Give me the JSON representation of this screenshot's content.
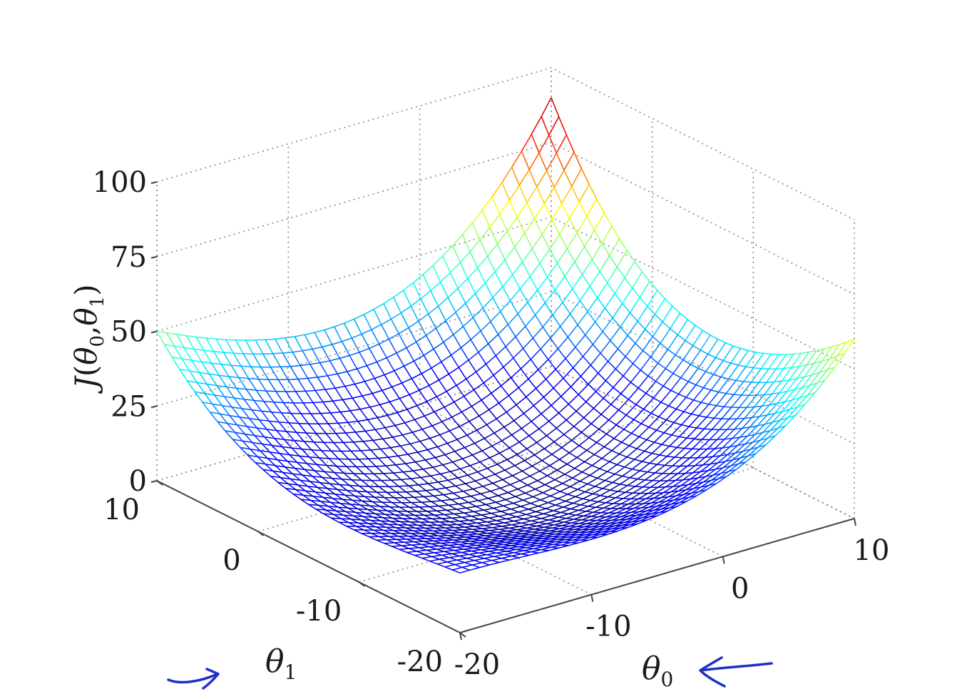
{
  "chart_data": {
    "type": "surface",
    "function": "J(θ0,θ1) bowl-shaped quadratic cost surface (mesh)",
    "theta0_range": [
      -20,
      10
    ],
    "theta1_range": [
      -20,
      10
    ],
    "z_range": [
      0,
      100
    ],
    "z_ticks": [
      "0",
      "25",
      "50",
      "75",
      "100"
    ],
    "theta0_ticks": [
      "-20",
      "-10",
      "0",
      "10"
    ],
    "theta1_ticks": [
      "-20",
      "-10",
      "0",
      "10"
    ],
    "corner_values": {
      "theta0_-20_theta1_10": 50,
      "theta0_10_theta1_10": 90,
      "theta0_10_theta1_-20": 60,
      "theta0_-20_theta1_-20": 20,
      "minimum": 0
    },
    "zlabel": "J(θ0,θ1)",
    "xlabel": "θ0",
    "ylabel": "θ1",
    "colormap": [
      "#00008f",
      "#0000ff",
      "#00ffff",
      "#ffff00",
      "#ff0000",
      "#800000"
    ],
    "grid": true
  },
  "labels": {
    "zlabel_main": "J",
    "zlabel_open": "(",
    "zlabel_t0": "θ",
    "zlabel_sub0": "0",
    "zlabel_comma": ",",
    "zlabel_t1": "θ",
    "zlabel_sub1": "1",
    "zlabel_close": ")",
    "x_theta": "θ",
    "x_sub": "0",
    "y_theta": "θ",
    "y_sub": "1"
  },
  "annotations": {
    "arrow_color": "#1f2fc8"
  }
}
